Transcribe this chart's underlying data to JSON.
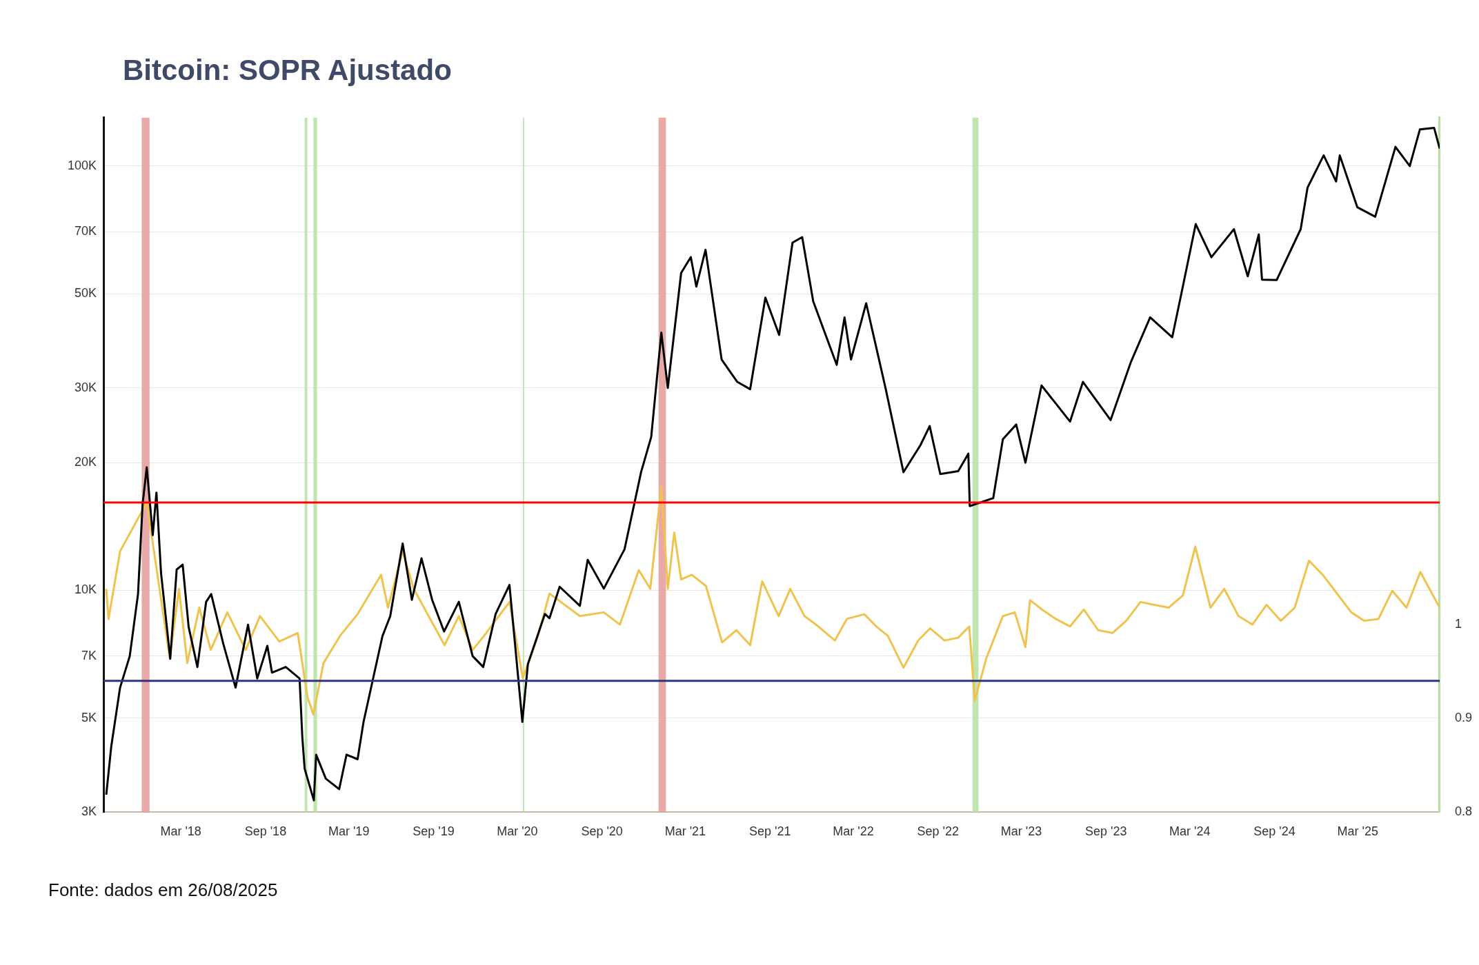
{
  "chart_data": {
    "type": "line",
    "title": "Bitcoin: SOPR Ajustado",
    "xlim": [
      "2017-09-14",
      "2025-08-26"
    ],
    "xticks": [
      {
        "value": "2018-03",
        "label": "Mar '18"
      },
      {
        "value": "2018-09",
        "label": "Sep '18"
      },
      {
        "value": "2019-03",
        "label": "Mar '19"
      },
      {
        "value": "2019-09",
        "label": "Sep '19"
      },
      {
        "value": "2020-03",
        "label": "Mar '20"
      },
      {
        "value": "2020-09",
        "label": "Sep '20"
      },
      {
        "value": "2021-03",
        "label": "Mar '21"
      },
      {
        "value": "2021-09",
        "label": "Sep '21"
      },
      {
        "value": "2022-03",
        "label": "Mar '22"
      },
      {
        "value": "2022-09",
        "label": "Sep '22"
      },
      {
        "value": "2023-03",
        "label": "Mar '23"
      },
      {
        "value": "2023-09",
        "label": "Sep '23"
      },
      {
        "value": "2024-03",
        "label": "Mar '24"
      },
      {
        "value": "2024-09",
        "label": "Sep '24"
      },
      {
        "value": "2025-03",
        "label": "Mar '25"
      }
    ],
    "ylim": [
      3000,
      130000
    ],
    "yticks": [
      {
        "value": 3000,
        "label": "3K"
      },
      {
        "value": 5000,
        "label": "5K"
      },
      {
        "value": 7000,
        "label": "7K"
      },
      {
        "value": 10000,
        "label": "10K"
      },
      {
        "value": 20000,
        "label": "20K"
      },
      {
        "value": 30000,
        "label": "30K"
      },
      {
        "value": 50000,
        "label": "50K"
      },
      {
        "value": 70000,
        "label": "70K"
      },
      {
        "value": 100000,
        "label": "100K"
      }
    ],
    "y2lim": [
      0.8,
      1.54
    ],
    "y2ticks": [
      0.8,
      0.9,
      1
    ],
    "log": "y",
    "grid": "y",
    "legend": false,
    "series": [
      {
        "color": "#000000",
        "x": [
          "2017-09-20",
          "2017-10-01",
          "2017-10-20",
          "2017-11-10",
          "2017-11-28",
          "2017-12-08",
          "2017-12-17",
          "2017-12-30",
          "2018-01-07",
          "2018-01-17",
          "2018-02-06",
          "2018-02-20",
          "2018-03-05",
          "2018-03-18",
          "2018-04-06",
          "2018-04-25",
          "2018-05-06",
          "2018-06-01",
          "2018-06-28",
          "2018-07-25",
          "2018-08-14",
          "2018-09-05",
          "2018-09-15",
          "2018-10-15",
          "2018-11-14",
          "2018-11-20",
          "2018-11-25",
          "2018-12-15",
          "2018-12-20",
          "2019-01-10",
          "2019-02-08",
          "2019-02-24",
          "2019-03-20",
          "2019-04-02",
          "2019-05-13",
          "2019-05-30",
          "2019-06-26",
          "2019-07-16",
          "2019-08-06",
          "2019-08-29",
          "2019-09-24",
          "2019-10-26",
          "2019-11-25",
          "2019-12-18",
          "2020-01-14",
          "2020-02-13",
          "2020-03-12",
          "2020-03-24",
          "2020-04-30",
          "2020-05-10",
          "2020-06-01",
          "2020-07-15",
          "2020-08-01",
          "2020-09-05",
          "2020-10-20",
          "2020-11-25",
          "2020-12-17",
          "2021-01-08",
          "2021-01-22",
          "2021-02-20",
          "2021-03-13",
          "2021-03-25",
          "2021-04-14",
          "2021-05-19",
          "2021-06-22",
          "2021-07-20",
          "2021-08-22",
          "2021-09-21",
          "2021-10-20",
          "2021-11-10",
          "2021-12-04",
          "2022-01-24",
          "2022-02-10",
          "2022-02-24",
          "2022-03-29",
          "2022-05-10",
          "2022-06-18",
          "2022-07-25",
          "2022-08-14",
          "2022-09-06",
          "2022-10-15",
          "2022-11-06",
          "2022-11-09",
          "2022-12-30",
          "2023-01-20",
          "2023-02-18",
          "2023-03-10",
          "2023-04-14",
          "2023-06-15",
          "2023-07-13",
          "2023-09-11",
          "2023-10-25",
          "2023-12-06",
          "2024-01-23",
          "2024-02-15",
          "2024-03-14",
          "2024-04-17",
          "2024-06-05",
          "2024-07-05",
          "2024-07-29",
          "2024-08-05",
          "2024-09-06",
          "2024-10-28",
          "2024-11-12",
          "2024-12-17",
          "2025-01-13",
          "2025-01-21",
          "2025-02-28",
          "2025-04-08",
          "2025-05-22",
          "2025-06-22",
          "2025-07-14",
          "2025-08-14",
          "2025-08-26"
        ],
        "values": [
          3300,
          4300,
          5900,
          7000,
          9800,
          16000,
          19500,
          13500,
          17000,
          11000,
          6900,
          11200,
          11500,
          8200,
          6600,
          9400,
          9800,
          7500,
          5900,
          8300,
          6200,
          7400,
          6400,
          6600,
          6200,
          4500,
          3800,
          3200,
          4100,
          3600,
          3400,
          4100,
          4000,
          4900,
          7800,
          8700,
          12900,
          9500,
          11900,
          9500,
          8000,
          9400,
          7000,
          6600,
          8800,
          10300,
          4900,
          6700,
          8800,
          8600,
          10200,
          9200,
          11800,
          10100,
          12500,
          19000,
          23000,
          40500,
          30000,
          56000,
          61000,
          52000,
          63500,
          35000,
          31000,
          29800,
          49000,
          40000,
          66000,
          68000,
          48000,
          34000,
          44000,
          35000,
          47500,
          30000,
          19000,
          22000,
          24400,
          18800,
          19100,
          21000,
          15800,
          16500,
          22700,
          24600,
          20000,
          30400,
          25000,
          31000,
          25200,
          34500,
          44000,
          39500,
          52000,
          73000,
          61000,
          71000,
          55000,
          69000,
          54000,
          53900,
          71000,
          89000,
          106000,
          92000,
          106000,
          80000,
          76000,
          111000,
          100000,
          122000,
          123000,
          110000
        ]
      },
      {
        "color": "#f0c34e",
        "axis": "y2",
        "x": [
          "2017-09-20",
          "2017-09-25",
          "2017-10-20",
          "2017-12-17",
          "2018-02-05",
          "2018-02-25",
          "2018-03-15",
          "2018-04-10",
          "2018-05-05",
          "2018-06-10",
          "2018-07-20",
          "2018-08-20",
          "2018-10-01",
          "2018-11-10",
          "2018-12-01",
          "2018-12-14",
          "2019-01-05",
          "2019-02-10",
          "2019-03-20",
          "2019-05-10",
          "2019-05-25",
          "2019-06-26",
          "2019-07-20",
          "2019-09-25",
          "2019-10-26",
          "2019-11-25",
          "2019-12-20",
          "2020-02-13",
          "2020-03-13",
          "2020-04-15",
          "2020-05-10",
          "2020-07-15",
          "2020-09-05",
          "2020-10-10",
          "2020-11-20",
          "2020-12-15",
          "2021-01-08",
          "2021-01-22",
          "2021-02-05",
          "2021-02-20",
          "2021-03-15",
          "2021-04-15",
          "2021-05-20",
          "2021-06-20",
          "2021-07-20",
          "2021-08-15",
          "2021-09-20",
          "2021-10-15",
          "2021-11-15",
          "2021-12-15",
          "2022-01-20",
          "2022-02-15",
          "2022-03-25",
          "2022-04-20",
          "2022-05-15",
          "2022-06-18",
          "2022-07-20",
          "2022-08-15",
          "2022-09-15",
          "2022-10-15",
          "2022-11-08",
          "2022-11-20",
          "2022-12-15",
          "2023-01-20",
          "2023-02-15",
          "2023-03-10",
          "2023-03-20",
          "2023-04-15",
          "2023-05-15",
          "2023-06-15",
          "2023-07-15",
          "2023-08-15",
          "2023-09-15",
          "2023-10-15",
          "2023-11-15",
          "2023-12-15",
          "2024-01-15",
          "2024-02-15",
          "2024-03-13",
          "2024-04-15",
          "2024-05-15",
          "2024-06-15",
          "2024-07-15",
          "2024-08-15",
          "2024-09-15",
          "2024-10-15",
          "2024-11-15",
          "2024-12-15",
          "2025-01-15",
          "2025-02-15",
          "2025-03-15",
          "2025-04-15",
          "2025-05-15",
          "2025-06-15",
          "2025-07-15",
          "2025-08-26"
        ],
        "values": [
          1.038,
          1.006,
          1.078,
          1.13,
          0.964,
          1.038,
          0.959,
          1.018,
          0.973,
          1.013,
          0.973,
          1.009,
          0.982,
          0.991,
          0.923,
          0.904,
          0.959,
          0.988,
          1.011,
          1.053,
          1.018,
          1.078,
          1.038,
          0.978,
          1.009,
          0.973,
          0.988,
          1.024,
          0.943,
          0.988,
          1.033,
          1.009,
          1.013,
          1.0,
          1.058,
          1.038,
          1.147,
          1.038,
          1.098,
          1.048,
          1.053,
          1.041,
          0.981,
          0.994,
          0.978,
          1.046,
          1.009,
          1.038,
          1.009,
          0.998,
          0.983,
          1.006,
          1.011,
          0.998,
          0.988,
          0.954,
          0.983,
          0.996,
          0.983,
          0.986,
          0.998,
          0.919,
          0.964,
          1.009,
          1.013,
          0.976,
          1.026,
          1.016,
          1.006,
          0.998,
          1.016,
          0.994,
          0.991,
          1.004,
          1.024,
          1.021,
          1.018,
          1.031,
          1.083,
          1.018,
          1.038,
          1.009,
          1.0,
          1.021,
          1.004,
          1.018,
          1.068,
          1.053,
          1.033,
          1.013,
          1.004,
          1.006,
          1.036,
          1.018,
          1.056,
          1.018
        ]
      }
    ],
    "ref_lines": [
      {
        "axis": "y2",
        "value": 1.13,
        "color": "#ff0000"
      },
      {
        "axis": "y2",
        "value": 0.94,
        "color": "#2e3580"
      }
    ],
    "bands": [
      {
        "axis": "x",
        "from": "2017-12-06",
        "to": "2017-12-23",
        "color": "#e59a9a"
      },
      {
        "axis": "x",
        "from": "2018-11-25",
        "to": "2018-12-01",
        "color": "#b5e0a0"
      },
      {
        "axis": "x",
        "from": "2018-12-14",
        "to": "2018-12-22",
        "color": "#b5e0a0"
      },
      {
        "axis": "x",
        "from": "2020-03-13",
        "to": "2020-03-16",
        "color": "#b5e0a0"
      },
      {
        "axis": "x",
        "from": "2021-01-02",
        "to": "2021-01-18",
        "color": "#e59a9a"
      },
      {
        "axis": "x",
        "from": "2022-11-15",
        "to": "2022-11-28",
        "color": "#b5e0a0"
      }
    ],
    "annotations": [
      "Fonte: dados em 26/08/2025"
    ]
  }
}
